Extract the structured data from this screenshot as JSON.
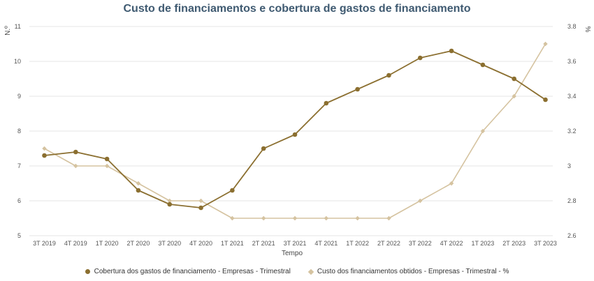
{
  "chart_data": {
    "type": "line",
    "title": "Custo de financiamentos e cobertura de gastos de financiamento",
    "xlabel": "Tempo",
    "ylabel_left": "N.º",
    "ylabel_right": "%",
    "categories": [
      "3T 2019",
      "4T 2019",
      "1T 2020",
      "2T 2020",
      "3T 2020",
      "4T 2020",
      "1T 2021",
      "2T 2021",
      "3T 2021",
      "4T 2021",
      "1T 2022",
      "2T 2022",
      "3T 2022",
      "4T 2022",
      "1T 2023",
      "2T 2023",
      "3T 2023"
    ],
    "ylim_left": [
      5,
      11
    ],
    "yticks_left": [
      5,
      6,
      7,
      8,
      9,
      10,
      11
    ],
    "ylim_right": [
      2.6,
      3.8
    ],
    "yticks_right": [
      "2.6",
      "2.8",
      "3",
      "3.2",
      "3.4",
      "3.6",
      "3.8"
    ],
    "grid": true,
    "legend_position": "bottom",
    "series": [
      {
        "name": "Cobertura dos gastos de financiamento - Empresas - Trimestral",
        "axis": "left",
        "color": "#8b6f30",
        "marker": "circle",
        "values": [
          7.3,
          7.4,
          7.2,
          6.3,
          5.9,
          5.8,
          6.3,
          7.5,
          7.9,
          8.8,
          9.2,
          9.6,
          10.1,
          10.3,
          9.9,
          9.5,
          8.9
        ]
      },
      {
        "name": "Custo dos financiamentos obtidos - Empresas - Trimestral - %",
        "axis": "right",
        "color": "#d5c3a0",
        "marker": "diamond",
        "values": [
          3.1,
          3.0,
          3.0,
          2.9,
          2.8,
          2.8,
          2.7,
          2.7,
          2.7,
          2.7,
          2.7,
          2.7,
          2.8,
          2.9,
          3.2,
          3.4,
          3.7
        ]
      }
    ]
  }
}
